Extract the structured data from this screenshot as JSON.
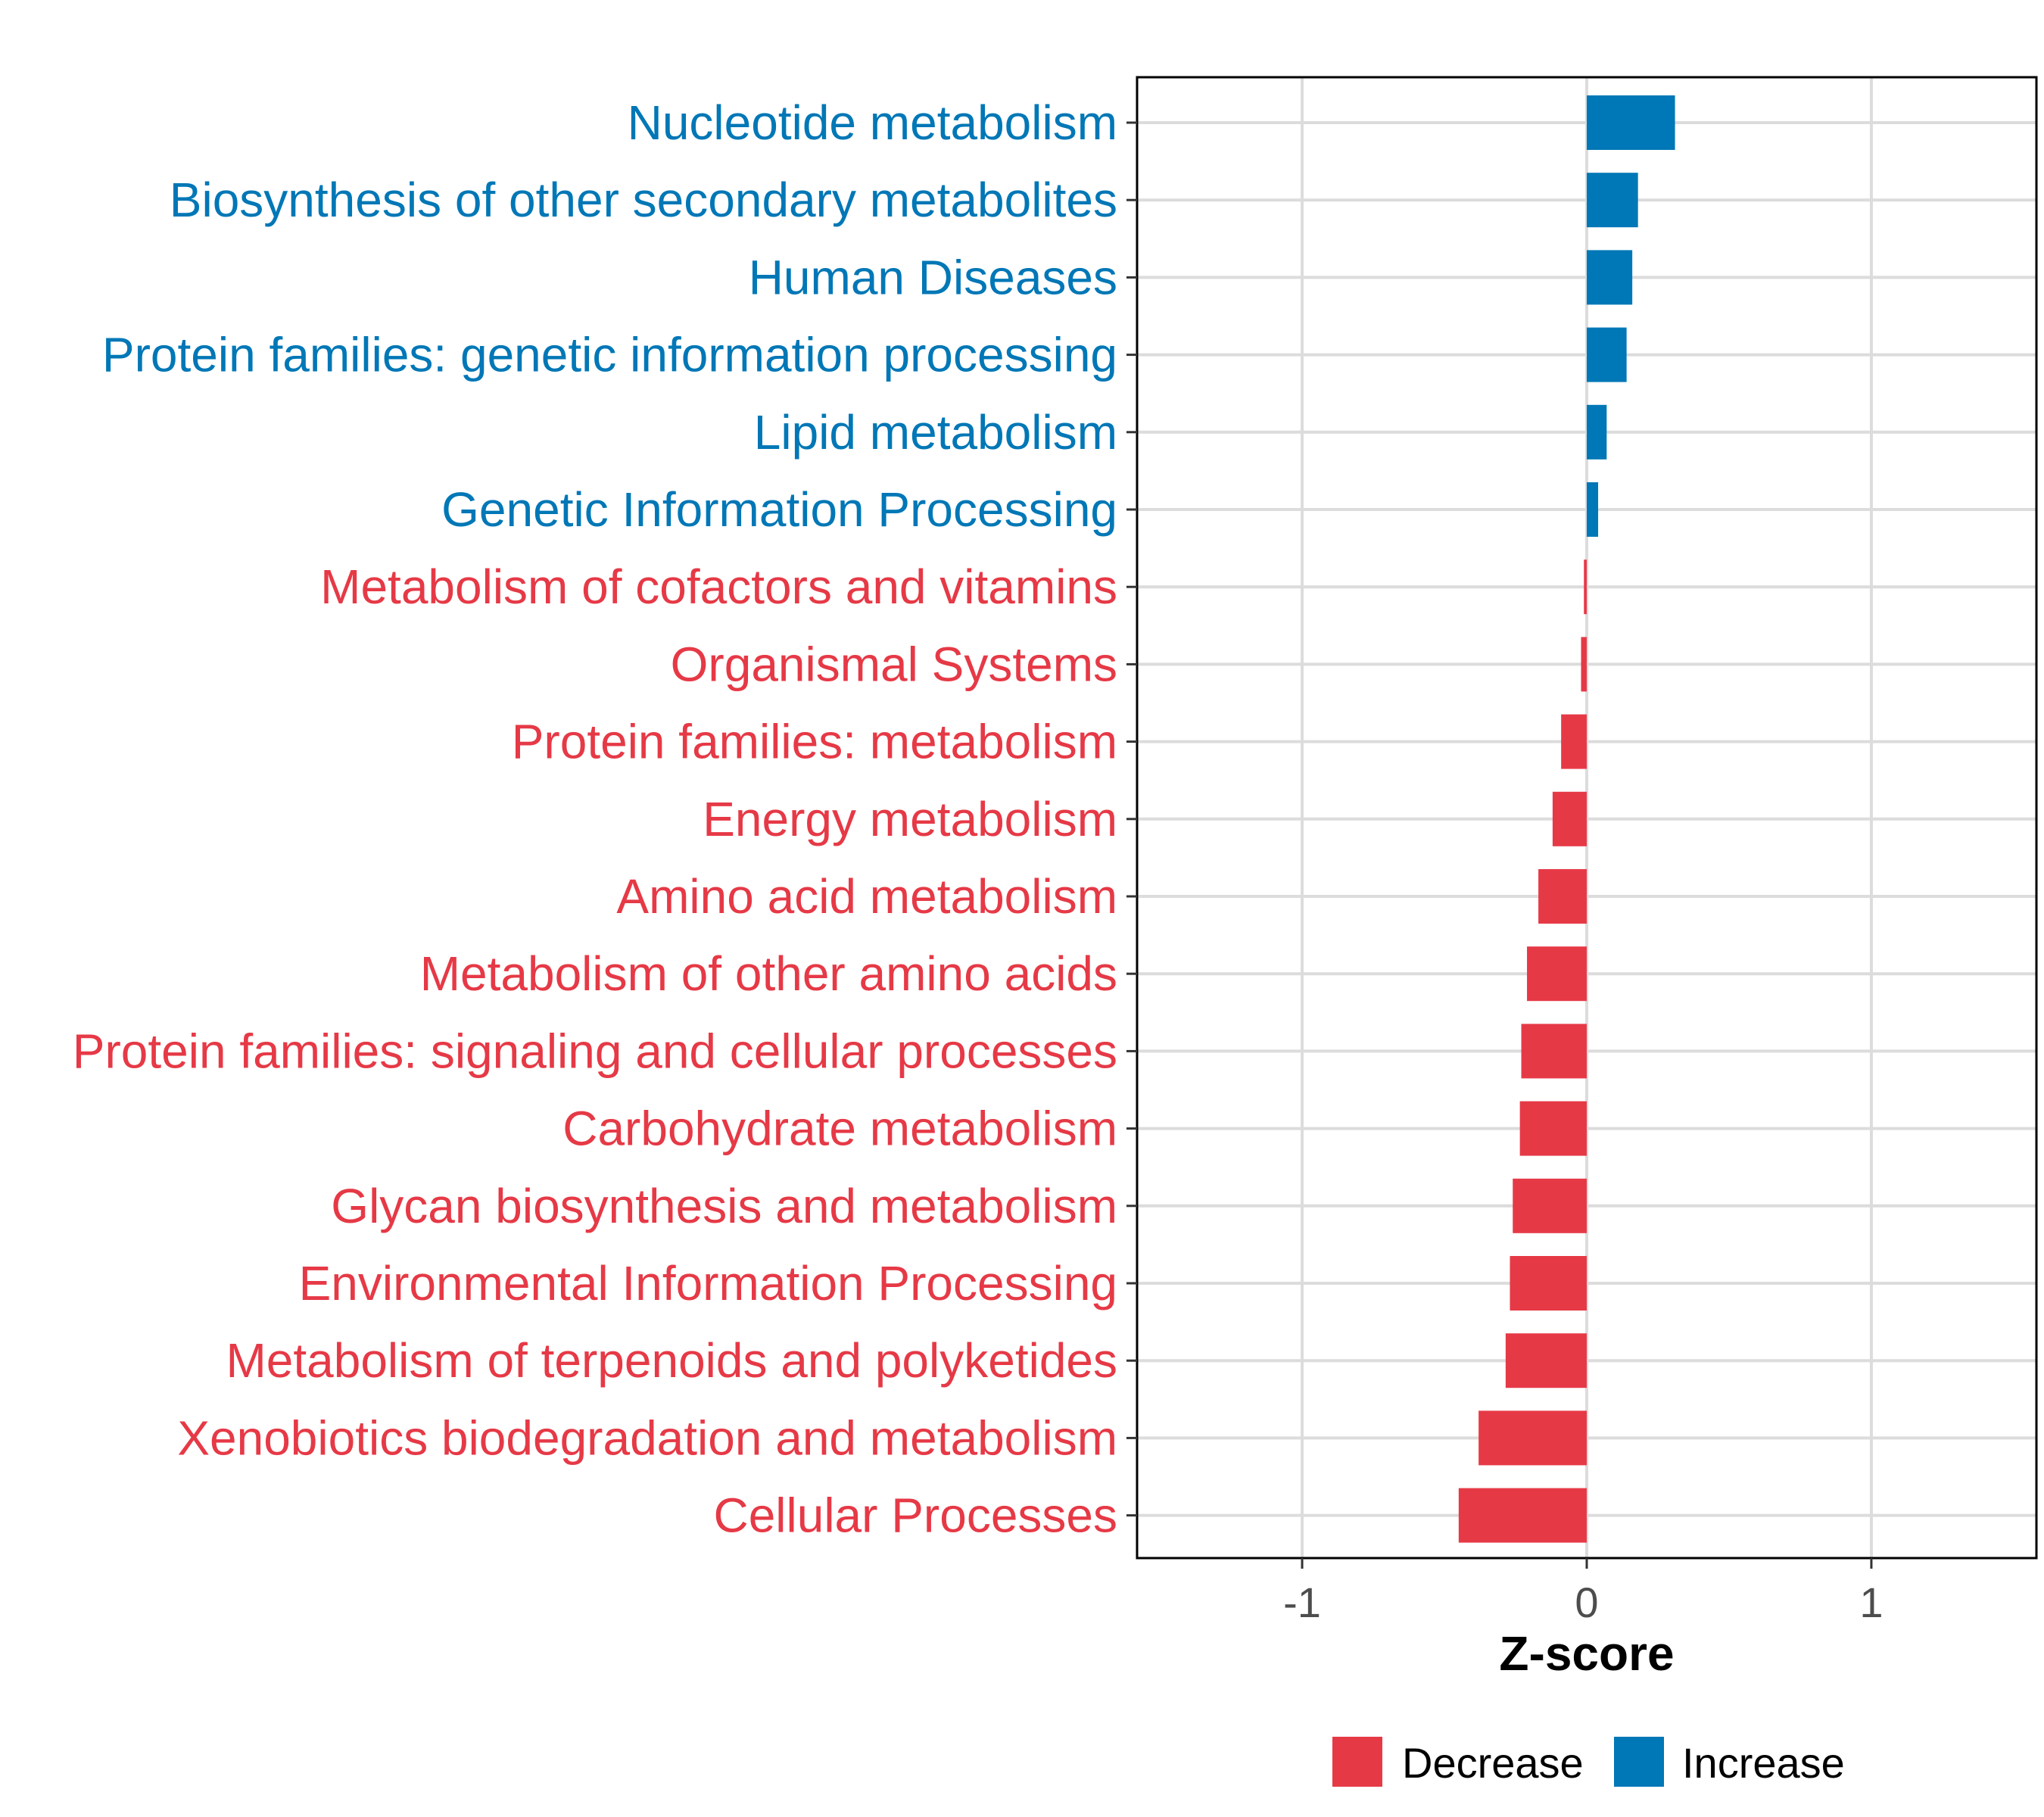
{
  "chart_data": {
    "type": "bar",
    "orientation": "horizontal",
    "title": "",
    "xlabel": "Z-score",
    "ylabel": "",
    "xlim": [
      -1.58,
      1.58
    ],
    "xticks": [
      -1,
      0,
      1
    ],
    "xtick_labels": [
      "-1",
      "0",
      "1"
    ],
    "grid": true,
    "legend_position": "bottom",
    "colors": {
      "Decrease": "#e63946",
      "Increase": "#0077b6"
    },
    "legend": [
      {
        "name": "Decrease",
        "color": "#e63946"
      },
      {
        "name": "Increase",
        "color": "#0077b6"
      }
    ],
    "categories": [
      "Nucleotide metabolism",
      "Biosynthesis of other secondary metabolites",
      "Human Diseases",
      "Protein families: genetic information processing",
      "Lipid metabolism",
      "Genetic Information Processing",
      "Metabolism of cofactors and vitamins",
      "Organismal Systems",
      "Protein families: metabolism",
      "Energy metabolism",
      "Amino acid metabolism",
      "Metabolism of other amino acids",
      "Protein families: signaling and cellular processes",
      "Carbohydrate metabolism",
      "Glycan biosynthesis and metabolism",
      "Environmental Information Processing",
      "Metabolism of terpenoids and polyketides",
      "Xenobiotics biodegradation and metabolism",
      "Cellular Processes"
    ],
    "values": [
      0.31,
      0.18,
      0.16,
      0.14,
      0.07,
      0.04,
      -0.01,
      -0.02,
      -0.09,
      -0.12,
      -0.17,
      -0.21,
      -0.23,
      -0.235,
      -0.26,
      -0.27,
      -0.285,
      -0.38,
      -0.45
    ],
    "groups": [
      "Increase",
      "Increase",
      "Increase",
      "Increase",
      "Increase",
      "Increase",
      "Decrease",
      "Decrease",
      "Decrease",
      "Decrease",
      "Decrease",
      "Decrease",
      "Decrease",
      "Decrease",
      "Decrease",
      "Decrease",
      "Decrease",
      "Decrease",
      "Decrease"
    ]
  }
}
